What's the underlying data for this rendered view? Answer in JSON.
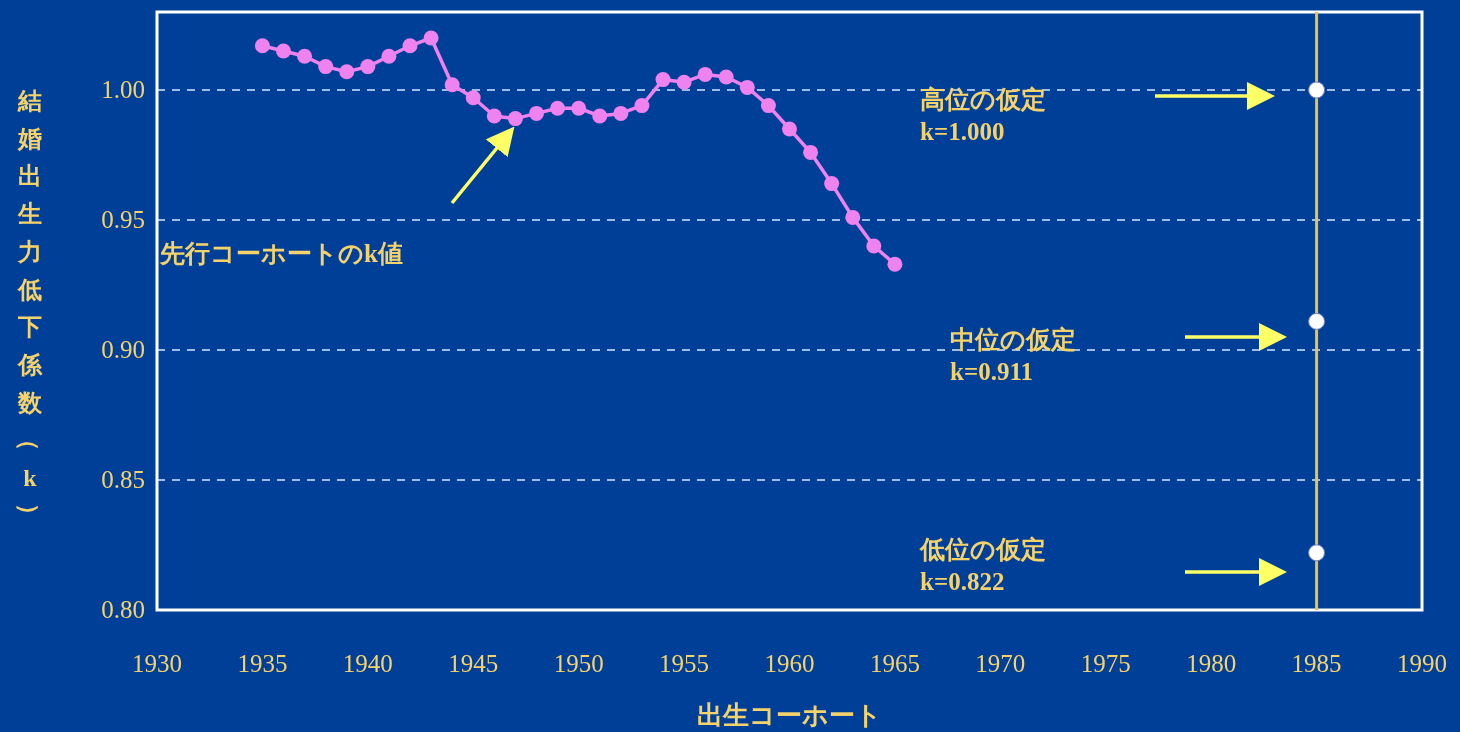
{
  "chart_data": {
    "type": "line",
    "xlabel": "出生コーホート",
    "ylabel": "結婚出生力低下係数（k）",
    "xlim": [
      1930,
      1990
    ],
    "xticks": [
      1930,
      1935,
      1940,
      1945,
      1950,
      1955,
      1960,
      1965,
      1970,
      1975,
      1980,
      1985,
      1990
    ],
    "ylim": [
      0.8,
      1.03
    ],
    "yticks": [
      {
        "value": 0.8,
        "label": "0.80"
      },
      {
        "value": 0.85,
        "label": "0.85"
      },
      {
        "value": 0.9,
        "label": "0.90"
      },
      {
        "value": 0.95,
        "label": "0.95"
      },
      {
        "value": 1.0,
        "label": "1.00"
      }
    ],
    "grid": "y",
    "series": [
      {
        "marker": "circle",
        "color": "#ee82ee",
        "x": [
          1935,
          1936,
          1937,
          1938,
          1939,
          1940,
          1941,
          1942,
          1943,
          1944,
          1945,
          1946,
          1947,
          1948,
          1949,
          1950,
          1951,
          1952,
          1953,
          1954,
          1955,
          1956,
          1957,
          1958,
          1959,
          1960,
          1961,
          1962,
          1963,
          1964,
          1965
        ],
        "values": [
          1.017,
          1.015,
          1.013,
          1.009,
          1.007,
          1.009,
          1.013,
          1.017,
          1.02,
          1.002,
          0.997,
          0.99,
          0.989,
          0.991,
          0.993,
          0.993,
          0.99,
          0.991,
          0.994,
          1.004,
          1.003,
          1.006,
          1.005,
          1.001,
          0.994,
          0.985,
          0.976,
          0.964,
          0.951,
          0.94,
          0.933
        ]
      },
      {
        "type": "scatter",
        "marker": "circle",
        "color": "#ffffff",
        "x": [
          1985,
          1985,
          1985
        ],
        "values": [
          1.0,
          0.911,
          0.822
        ]
      }
    ],
    "ref_lines": [
      {
        "axis": "x",
        "value": 1985,
        "color": "#f0c040"
      }
    ],
    "annotations": [
      "先行コーホートのk値",
      "高位の仮定\nk=1.000",
      "中位の仮定\nk=0.911",
      "低位の仮定\nk=0.822"
    ]
  }
}
